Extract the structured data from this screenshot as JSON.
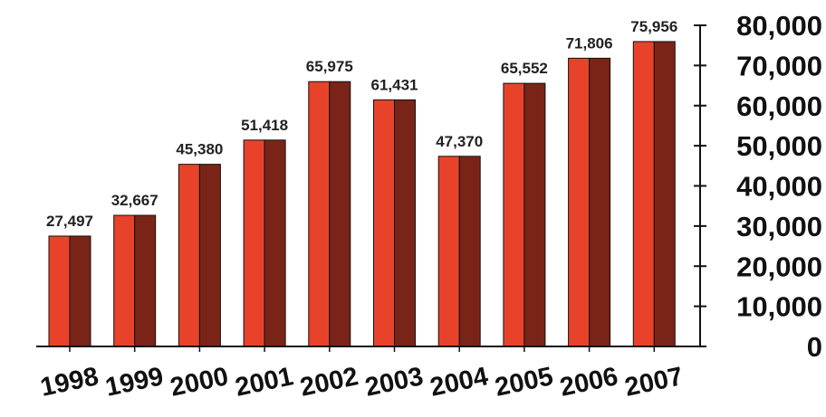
{
  "chart_data": {
    "type": "bar",
    "categories": [
      "1998",
      "1999",
      "2000",
      "2001",
      "2002",
      "2003",
      "2004",
      "2005",
      "2006",
      "2007"
    ],
    "values": [
      27497,
      32667,
      45380,
      51418,
      65975,
      61431,
      47370,
      65552,
      71806,
      75956
    ],
    "value_labels": [
      "27,497",
      "32,667",
      "45,380",
      "51,418",
      "65,975",
      "61,431",
      "47,370",
      "65,552",
      "71,806",
      "75,956"
    ],
    "yticks": [
      0,
      10000,
      20000,
      30000,
      40000,
      50000,
      60000,
      70000,
      80000
    ],
    "ytick_labels": [
      "0",
      "10,000",
      "20,000",
      "30,000",
      "40,000",
      "50,000",
      "60,000",
      "70,000",
      "80,000"
    ],
    "ylim": [
      0,
      80000
    ],
    "y_axis_side": "right",
    "grid": false,
    "title": "",
    "xlabel": "",
    "ylabel": "",
    "colors": {
      "bar_front": "#e8432a",
      "bar_side": "#7a2418",
      "axis": "#111111",
      "text": "#222222"
    }
  }
}
